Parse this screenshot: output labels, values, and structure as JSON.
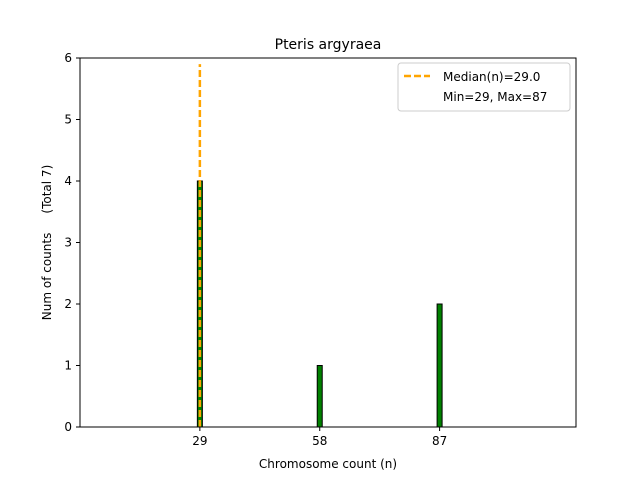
{
  "chart_data": {
    "type": "bar",
    "title": "Pteris argyraea",
    "xlabel": "Chromosome count (n)",
    "ylabel": "Num of counts     (Total 7)",
    "x": [
      29,
      58,
      87
    ],
    "values": [
      4,
      1,
      2
    ],
    "xlim": [
      0,
      120
    ],
    "ylim": [
      0,
      6
    ],
    "xticks": [
      "29",
      "58",
      "87"
    ],
    "yticks": [
      "0",
      "1",
      "2",
      "3",
      "4",
      "5",
      "6"
    ],
    "grid": false,
    "bar_color": "#008000",
    "bar_edge_color": "#000000",
    "median": {
      "value": 29.0,
      "label": "Median(n)=29.0",
      "color": "#FFA500",
      "style": "dashed"
    },
    "legend": {
      "placement": "top-right",
      "entries": [
        "Median(n)=29.0",
        "Min=29, Max=87"
      ]
    }
  }
}
